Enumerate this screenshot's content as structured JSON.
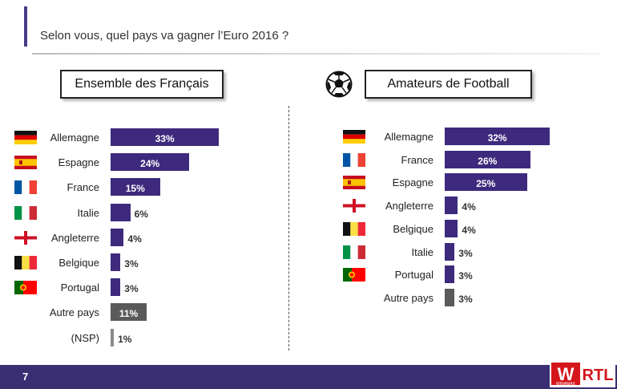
{
  "header": {
    "question": "Selon vous, quel pays va gagner l’Euro 2016 ?"
  },
  "page_number": "7",
  "logo": {
    "left_text": "W",
    "small_text": "WINAMAX",
    "right_text": "RTL"
  },
  "colors": {
    "bar": "#3d2a7d",
    "bar_other": "#5a5a5a",
    "bar_nsp": "#8a8a8a",
    "footer": "#3a2f73"
  },
  "chart_data": [
    {
      "type": "bar",
      "title": "Ensemble des Français",
      "categories": [
        "Allemagne",
        "Espagne",
        "France",
        "Italie",
        "Angleterre",
        "Belgique",
        "Portugal",
        "Autre pays",
        "(NSP)"
      ],
      "values": [
        33,
        24,
        15,
        6,
        4,
        3,
        3,
        11,
        1
      ],
      "labels": [
        "33%",
        "24%",
        "15%",
        "6%",
        "4%",
        "3%",
        "3%",
        "11%",
        "1%"
      ],
      "flags": [
        "germany-flag",
        "spain-flag",
        "france-flag",
        "italy-flag",
        "england-flag",
        "belgium-flag",
        "portugal-flag",
        "",
        ""
      ],
      "bar_kinds": [
        "country",
        "country",
        "country",
        "country",
        "country",
        "country",
        "country",
        "other",
        "nsp"
      ],
      "xlim": [
        0,
        100
      ]
    },
    {
      "type": "bar",
      "title": "Amateurs de Football",
      "categories": [
        "Allemagne",
        "France",
        "Espagne",
        "Angleterre",
        "Belgique",
        "Italie",
        "Portugal",
        "Autre pays"
      ],
      "values": [
        32,
        26,
        25,
        4,
        4,
        3,
        3,
        3
      ],
      "labels": [
        "32%",
        "26%",
        "25%",
        "4%",
        "4%",
        "3%",
        "3%",
        "3%"
      ],
      "flags": [
        "germany-flag",
        "france-flag",
        "spain-flag",
        "england-flag",
        "belgium-flag",
        "italy-flag",
        "portugal-flag",
        ""
      ],
      "bar_kinds": [
        "country",
        "country",
        "country",
        "country",
        "country",
        "country",
        "country",
        "other"
      ],
      "xlim": [
        0,
        100
      ]
    }
  ]
}
